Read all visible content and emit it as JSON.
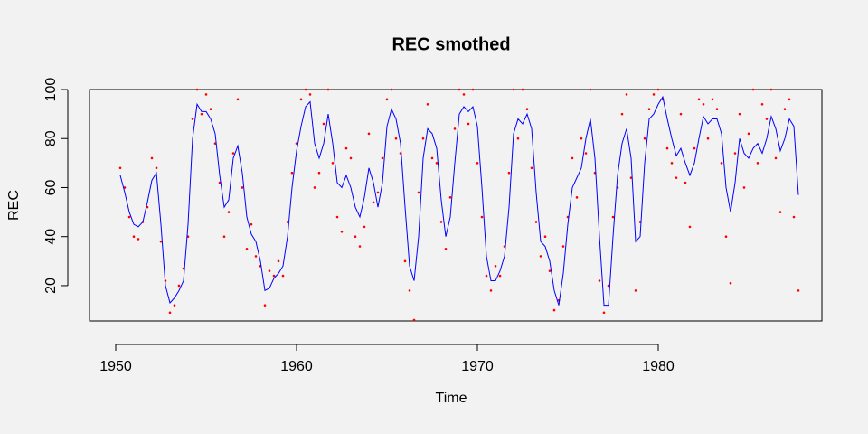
{
  "chart_data": {
    "type": "line",
    "title": "REC smothed",
    "x_label": "Time",
    "y_label": "REC",
    "x": [
      1950.25,
      1950.5,
      1950.75,
      1951,
      1951.25,
      1951.5,
      1951.75,
      1952,
      1952.25,
      1952.5,
      1952.75,
      1953,
      1953.25,
      1953.5,
      1953.75,
      1954,
      1954.25,
      1954.5,
      1954.75,
      1955,
      1955.25,
      1955.5,
      1955.75,
      1956,
      1956.25,
      1956.5,
      1956.75,
      1957,
      1957.25,
      1957.5,
      1957.75,
      1958,
      1958.25,
      1958.5,
      1958.75,
      1959,
      1959.25,
      1959.5,
      1959.75,
      1960,
      1960.25,
      1960.5,
      1960.75,
      1961,
      1961.25,
      1961.5,
      1961.75,
      1962,
      1962.25,
      1962.5,
      1962.75,
      1963,
      1963.25,
      1963.5,
      1963.75,
      1964,
      1964.25,
      1964.5,
      1964.75,
      1965,
      1965.25,
      1965.5,
      1965.75,
      1966,
      1966.25,
      1966.5,
      1966.75,
      1967,
      1967.25,
      1967.5,
      1967.75,
      1968,
      1968.25,
      1968.5,
      1968.75,
      1969,
      1969.25,
      1969.5,
      1969.75,
      1970,
      1970.25,
      1970.5,
      1970.75,
      1971,
      1971.25,
      1971.5,
      1971.75,
      1972,
      1972.25,
      1972.5,
      1972.75,
      1973,
      1973.25,
      1973.5,
      1973.75,
      1974,
      1974.25,
      1974.5,
      1974.75,
      1975,
      1975.25,
      1975.5,
      1975.75,
      1976,
      1976.25,
      1976.5,
      1976.75,
      1977,
      1977.25,
      1977.5,
      1977.75,
      1978,
      1978.25,
      1978.5,
      1978.75,
      1979,
      1979.25,
      1979.5,
      1979.75,
      1980,
      1980.25,
      1980.5,
      1980.75,
      1981,
      1981.25,
      1981.5,
      1981.75,
      1982,
      1982.25,
      1982.5,
      1982.75,
      1983,
      1983.25,
      1983.5,
      1983.75,
      1984,
      1984.25,
      1984.5,
      1984.75,
      1985,
      1985.25,
      1985.5,
      1985.75,
      1986,
      1986.25,
      1986.5,
      1986.75,
      1987,
      1987.25,
      1987.5,
      1987.75
    ],
    "series": [
      {
        "mode": "points",
        "color": "#ff0000",
        "values": [
          68,
          60,
          48,
          40,
          39,
          46,
          52,
          72,
          68,
          38,
          22,
          9,
          12,
          20,
          27,
          40,
          88,
          100,
          90,
          98,
          92,
          78,
          62,
          40,
          50,
          74,
          96,
          60,
          35,
          45,
          32,
          28,
          12,
          26,
          24,
          30,
          24,
          46,
          66,
          78,
          96,
          100,
          98,
          60,
          66,
          86,
          100,
          70,
          48,
          42,
          76,
          72,
          40,
          36,
          44,
          82,
          54,
          58,
          72,
          96,
          100,
          80,
          74,
          30,
          18,
          6,
          58,
          80,
          94,
          72,
          70,
          46,
          35,
          56,
          84,
          100,
          98,
          86,
          100,
          70,
          48,
          24,
          18,
          28,
          24,
          36,
          66,
          100,
          80,
          100,
          92,
          68,
          46,
          32,
          40,
          26,
          10,
          14,
          36,
          48,
          72,
          56,
          80,
          74,
          100,
          66,
          22,
          9,
          20,
          48,
          60,
          90,
          98,
          64,
          18,
          46,
          80,
          92,
          98,
          100,
          96,
          76,
          70,
          64,
          90,
          62,
          44,
          76,
          96,
          94,
          80,
          96,
          92,
          70,
          40,
          21,
          74,
          90,
          60,
          82,
          100,
          70,
          94,
          88,
          100,
          72,
          50,
          92,
          96,
          48,
          18
        ]
      },
      {
        "mode": "line",
        "color": "#0000ff",
        "values": [
          65,
          58,
          50,
          45,
          44,
          46,
          54,
          63,
          66,
          45,
          20,
          13,
          15,
          18,
          22,
          45,
          80,
          94,
          91,
          91,
          88,
          82,
          65,
          52,
          55,
          72,
          77,
          66,
          48,
          41,
          38,
          30,
          18,
          19,
          23,
          25,
          28,
          40,
          60,
          75,
          85,
          93,
          95,
          78,
          72,
          78,
          90,
          78,
          62,
          60,
          65,
          60,
          52,
          48,
          56,
          68,
          62,
          52,
          62,
          85,
          92,
          88,
          78,
          52,
          28,
          22,
          40,
          72,
          84,
          82,
          76,
          55,
          40,
          48,
          70,
          90,
          93,
          91,
          93,
          85,
          60,
          32,
          22,
          22,
          26,
          32,
          52,
          82,
          88,
          86,
          90,
          84,
          58,
          38,
          36,
          30,
          18,
          12,
          25,
          45,
          60,
          64,
          68,
          80,
          88,
          72,
          40,
          12,
          12,
          40,
          65,
          78,
          84,
          72,
          38,
          40,
          70,
          88,
          90,
          94,
          97,
          88,
          80,
          73,
          76,
          70,
          65,
          70,
          80,
          89,
          86,
          88,
          88,
          82,
          60,
          50,
          62,
          80,
          74,
          72,
          76,
          78,
          74,
          80,
          89,
          84,
          75,
          80,
          88,
          85,
          57
        ]
      }
    ],
    "xlim": [
      1948.55,
      1989.05
    ],
    "xticks": [
      1950,
      1960,
      1970,
      1980
    ],
    "ylim": [
      5.6,
      100
    ],
    "yticks": [
      20,
      40,
      60,
      80,
      100
    ]
  }
}
